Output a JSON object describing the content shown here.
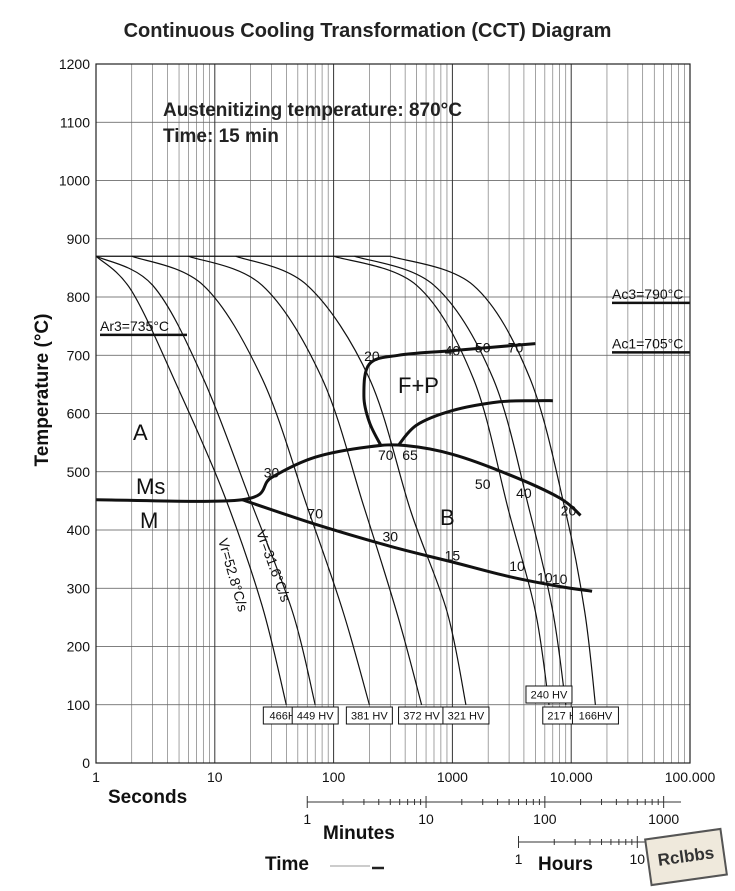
{
  "title": "Continuous Cooling Transformation (CCT) Diagram",
  "notes": {
    "austenitizing": "Austenitizing temperature:  870°C",
    "time": "Time: 15 min"
  },
  "watermark": "Rclbbs",
  "chart_data": {
    "type": "line",
    "title": "Continuous Cooling Transformation (CCT) Diagram",
    "ylabel": "Temperature (°C)",
    "ylim": [
      0,
      1200
    ],
    "yticks": [
      0,
      100,
      200,
      300,
      400,
      500,
      600,
      700,
      800,
      900,
      1000,
      1100,
      1200
    ],
    "xscale": "log",
    "xlim": [
      1,
      100000
    ],
    "xticks": [
      1,
      10,
      100,
      1000,
      10000,
      100000
    ],
    "xtick_labels": [
      "1",
      "10",
      "100",
      "1000",
      "10.000",
      "100.000"
    ],
    "grid": true,
    "time_axes": {
      "label": "Time",
      "seconds": {
        "label": "Seconds"
      },
      "minutes": {
        "label": "Minutes",
        "ticks": [
          1,
          10,
          100,
          1000
        ],
        "tick_labels": [
          "1",
          "10",
          "100",
          "1000"
        ]
      },
      "hours": {
        "label": "Hours",
        "ticks": [
          1,
          10
        ],
        "tick_labels": [
          "1",
          "10"
        ]
      }
    },
    "reference_lines": [
      {
        "label": "Ac3=790°C",
        "value": 790
      },
      {
        "label": "Ac1=705°C",
        "value": 705
      },
      {
        "label": "Ar3=735°C",
        "value": 735
      }
    ],
    "regions": [
      "A",
      "Ms",
      "M",
      "F+P",
      "B"
    ],
    "cooling_rates": [
      {
        "label": "Vr=52.8°C/s"
      },
      {
        "label": "Vr=31.6°C/s"
      }
    ],
    "hardness": [
      {
        "label": "466HV",
        "time_s": 40
      },
      {
        "label": "449 HV",
        "time_s": 70
      },
      {
        "label": "381 HV",
        "time_s": 200
      },
      {
        "label": "372 HV",
        "time_s": 550
      },
      {
        "label": "321 HV",
        "time_s": 1300
      },
      {
        "label": "240 HV",
        "time_s": 6500
      },
      {
        "label": "217 HV",
        "time_s": 9000
      },
      {
        "label": "166HV",
        "time_s": 16000
      }
    ],
    "cooling_curves": [
      {
        "label": "466HV",
        "points": [
          [
            1,
            870
          ],
          [
            2,
            810
          ],
          [
            5,
            640
          ],
          [
            12,
            460
          ],
          [
            25,
            270
          ],
          [
            40,
            100
          ]
        ]
      },
      {
        "label": "449 HV",
        "points": [
          [
            1,
            870
          ],
          [
            3,
            820
          ],
          [
            8,
            660
          ],
          [
            20,
            450
          ],
          [
            45,
            260
          ],
          [
            70,
            100
          ]
        ]
      },
      {
        "label": "381 HV",
        "points": [
          [
            2,
            870
          ],
          [
            8,
            820
          ],
          [
            25,
            660
          ],
          [
            60,
            440
          ],
          [
            120,
            260
          ],
          [
            200,
            100
          ]
        ]
      },
      {
        "label": "372 HV",
        "points": [
          [
            6,
            870
          ],
          [
            25,
            820
          ],
          [
            80,
            660
          ],
          [
            180,
            440
          ],
          [
            350,
            250
          ],
          [
            550,
            100
          ]
        ]
      },
      {
        "label": "321 HV",
        "points": [
          [
            15,
            870
          ],
          [
            60,
            820
          ],
          [
            200,
            660
          ],
          [
            450,
            430
          ],
          [
            900,
            260
          ],
          [
            1300,
            100
          ]
        ]
      },
      {
        "label": "240 HV",
        "points": [
          [
            100,
            870
          ],
          [
            500,
            820
          ],
          [
            1500,
            660
          ],
          [
            3000,
            430
          ],
          [
            5000,
            260
          ],
          [
            6500,
            100
          ]
        ]
      },
      {
        "label": "217 HV",
        "points": [
          [
            150,
            870
          ],
          [
            700,
            820
          ],
          [
            2200,
            660
          ],
          [
            4500,
            430
          ],
          [
            7000,
            260
          ],
          [
            9000,
            100
          ]
        ]
      },
      {
        "label": "166HV",
        "points": [
          [
            300,
            870
          ],
          [
            1500,
            820
          ],
          [
            4500,
            660
          ],
          [
            9000,
            430
          ],
          [
            13000,
            260
          ],
          [
            16000,
            100
          ]
        ]
      }
    ],
    "boundaries": [
      {
        "name": "Ms",
        "points": [
          [
            1,
            452
          ],
          [
            17,
            452
          ],
          [
            30,
            490
          ],
          [
            70,
            525
          ],
          [
            200,
            543
          ],
          [
            400,
            545
          ],
          [
            1000,
            530
          ],
          [
            3000,
            495
          ],
          [
            8000,
            455
          ],
          [
            12000,
            425
          ]
        ]
      },
      {
        "name": "M",
        "points": [
          [
            17,
            452
          ],
          [
            70,
            410
          ],
          [
            300,
            372
          ],
          [
            1000,
            345
          ],
          [
            3000,
            320
          ],
          [
            8000,
            303
          ],
          [
            15000,
            295
          ]
        ]
      },
      {
        "name": "F+P start",
        "points": [
          [
            250,
            545
          ],
          [
            200,
            585
          ],
          [
            180,
            630
          ],
          [
            200,
            685
          ],
          [
            350,
            700
          ],
          [
            1000,
            708
          ],
          [
            5000,
            720
          ]
        ]
      },
      {
        "name": "F+P end",
        "points": [
          [
            350,
            545
          ],
          [
            500,
            580
          ],
          [
            1000,
            605
          ],
          [
            2500,
            620
          ],
          [
            5000,
            622
          ],
          [
            7000,
            622
          ]
        ]
      }
    ],
    "curve_labels": [
      {
        "text": "20",
        "x": 210,
        "y": 690
      },
      {
        "text": "40",
        "x": 1000,
        "y": 700
      },
      {
        "text": "50",
        "x": 1800,
        "y": 705
      },
      {
        "text": "70",
        "x": 3400,
        "y": 705
      },
      {
        "text": "70",
        "x": 275,
        "y": 520
      },
      {
        "text": "65",
        "x": 440,
        "y": 520
      },
      {
        "text": "30",
        "x": 30,
        "y": 490
      },
      {
        "text": "70",
        "x": 70,
        "y": 420
      },
      {
        "text": "30",
        "x": 300,
        "y": 380
      },
      {
        "text": "15",
        "x": 1000,
        "y": 348
      },
      {
        "text": "50",
        "x": 1800,
        "y": 470
      },
      {
        "text": "40",
        "x": 4000,
        "y": 455
      },
      {
        "text": "20",
        "x": 9500,
        "y": 425
      },
      {
        "text": "10",
        "x": 3500,
        "y": 330
      },
      {
        "text": "10",
        "x": 6000,
        "y": 310
      },
      {
        "text": "10",
        "x": 8000,
        "y": 307
      }
    ]
  }
}
